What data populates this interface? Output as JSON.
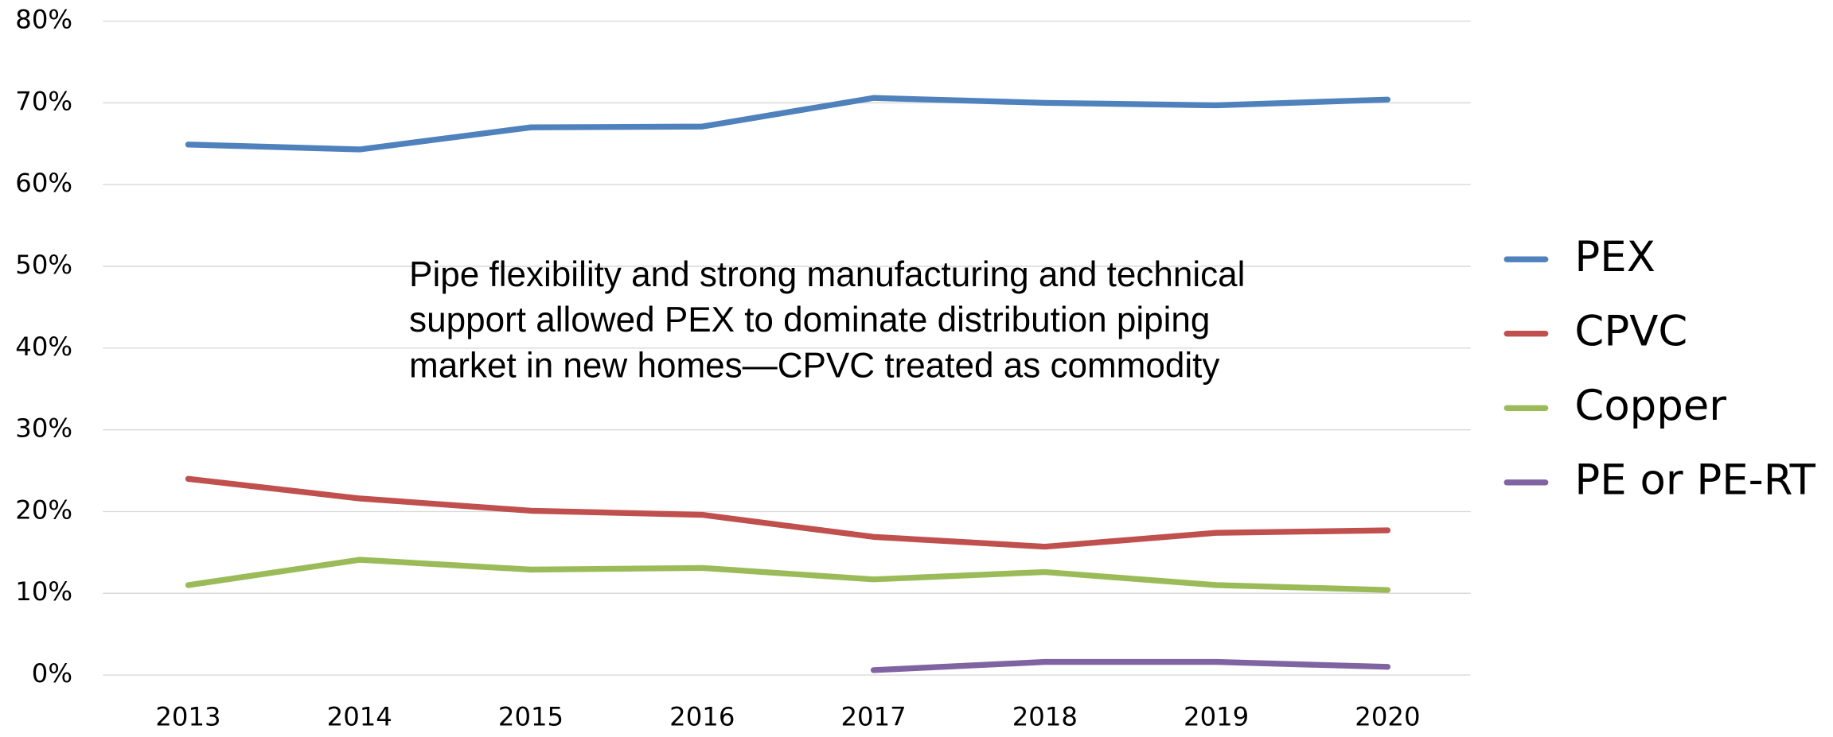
{
  "chart_data": {
    "type": "line",
    "categories": [
      "2013",
      "2014",
      "2015",
      "2016",
      "2017",
      "2018",
      "2019",
      "2020"
    ],
    "series": [
      {
        "name": "PEX",
        "color": "#4f81bd",
        "values": [
          64.9,
          64.3,
          67.0,
          67.1,
          70.6,
          70.0,
          69.7,
          70.4
        ]
      },
      {
        "name": "CPVC",
        "color": "#c0504d",
        "values": [
          24.0,
          21.6,
          20.1,
          19.6,
          16.9,
          15.7,
          17.4,
          17.7
        ]
      },
      {
        "name": "Copper",
        "color": "#9bbb59",
        "values": [
          11.0,
          14.1,
          12.9,
          13.1,
          11.7,
          12.6,
          11.0,
          10.4
        ]
      },
      {
        "name": "PE or PE-RT",
        "color": "#8064a2",
        "values": [
          null,
          null,
          null,
          null,
          0.6,
          1.6,
          1.6,
          1.0
        ]
      }
    ],
    "ylim": [
      0,
      80
    ],
    "yticks": [
      {
        "value": 0,
        "label": "0%"
      },
      {
        "value": 10,
        "label": "10%"
      },
      {
        "value": 20,
        "label": "20%"
      },
      {
        "value": 30,
        "label": "30%"
      },
      {
        "value": 40,
        "label": "40%"
      },
      {
        "value": 50,
        "label": "50%"
      },
      {
        "value": 60,
        "label": "60%"
      },
      {
        "value": 70,
        "label": "70%"
      },
      {
        "value": 80,
        "label": "80%"
      }
    ],
    "grid": true,
    "legend": "right",
    "annotation": [
      "Pipe flexibility and strong manufacturing and technical",
      "support allowed PEX to dominate distribution piping",
      "market in new homes—CPVC treated as commodity"
    ]
  }
}
